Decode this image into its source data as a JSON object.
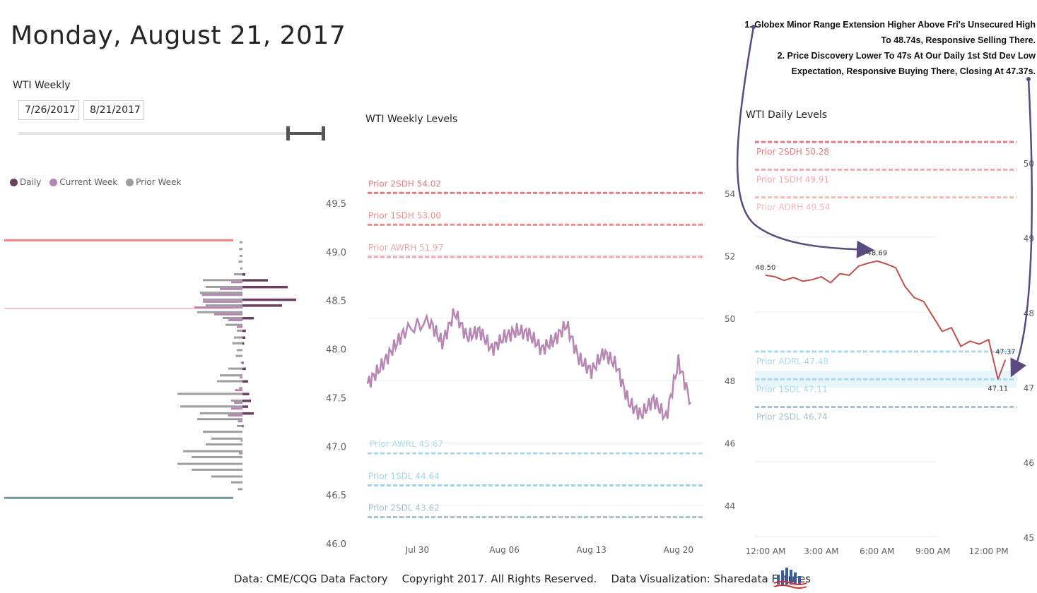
{
  "title": "Monday, August 21, 2017",
  "filter": {
    "label": "WTI Weekly",
    "start": "7/26/2017",
    "end": "8/21/2017"
  },
  "legend": [
    {
      "name": "Daily",
      "color": "#6b3f60"
    },
    {
      "name": "Current Week",
      "color": "#b886b4"
    },
    {
      "name": "Prior Week",
      "color": "#9e9e9e"
    }
  ],
  "annotation": [
    "1. Globex Minor Range Extension Higher Above Fri's Unsecured High",
    "To 48.74s, Responsive Selling There.",
    "2. Price Discovery Lower To 47s At Our Daily 1st Std Dev Low",
    "Expectation, Responsive Buying There, Closing At 47.37s."
  ],
  "footer": {
    "data": "Data: CME/CQG Data Factory",
    "copyright": "Copyright 2017. All Rights Reserved.",
    "viz": "Data Visualization: Sharedata Futures"
  },
  "chart_data": [
    {
      "type": "bar",
      "orientation": "horizontal",
      "title": "",
      "ylim": [
        46.0,
        49.5
      ],
      "y_ticks": [
        "49.5",
        "49.0",
        "48.5",
        "48.0",
        "47.5",
        "47.0",
        "46.5",
        "46.0"
      ],
      "price_levels": [
        49.1,
        49.03,
        48.96,
        48.9,
        48.83,
        48.77,
        48.71,
        48.64,
        48.58,
        48.51,
        48.45,
        48.38,
        48.32,
        48.25,
        48.19,
        48.12,
        48.06,
        47.99,
        47.93,
        47.86,
        47.8,
        47.73,
        47.67,
        47.6,
        47.54,
        47.47,
        47.41,
        47.34,
        47.28,
        47.21,
        47.15,
        47.08,
        47.02,
        46.95,
        46.89,
        46.82,
        46.76,
        46.69,
        46.63,
        46.56
      ],
      "series": [
        {
          "name": "Daily",
          "color": "#6b3f60",
          "values": [
            0,
            0,
            0,
            0,
            0,
            5,
            45,
            80,
            0,
            95,
            70,
            0,
            20,
            0,
            6,
            5,
            3,
            0,
            0,
            2,
            6,
            0,
            10,
            0,
            12,
            15,
            10,
            20,
            0,
            2,
            0,
            0,
            0,
            0,
            0,
            0,
            0,
            0,
            0,
            0
          ]
        },
        {
          "name": "Current Week",
          "color": "#b886b4",
          "values": [
            0,
            0,
            0,
            0,
            0,
            0,
            20,
            40,
            72,
            70,
            85,
            50,
            25,
            10,
            0,
            0,
            0,
            0,
            0,
            0,
            0,
            5,
            0,
            13,
            0,
            15,
            20,
            25,
            8,
            0,
            0,
            3,
            0,
            6,
            0,
            0,
            0,
            0,
            0,
            0
          ]
        },
        {
          "name": "Prior Week",
          "color": "#9e9e9e",
          "values": [
            5,
            6,
            5,
            7,
            4,
            15,
            70,
            65,
            75,
            70,
            65,
            80,
            35,
            30,
            10,
            15,
            18,
            10,
            12,
            3,
            25,
            40,
            45,
            6,
            115,
            20,
            110,
            75,
            80,
            10,
            70,
            55,
            65,
            105,
            90,
            115,
            90,
            55,
            20,
            8
          ]
        }
      ],
      "reference_lines": [
        {
          "value": 49.12,
          "color": "#f08080",
          "label": ""
        },
        {
          "value": 48.42,
          "color": "#f5b0b4",
          "label": ""
        },
        {
          "value": 46.47,
          "color": "#6a9a9e",
          "label": ""
        }
      ]
    },
    {
      "type": "line",
      "title": "WTI Weekly Levels",
      "x_ticks": [
        "Jul 30",
        "Aug 06",
        "Aug 13",
        "Aug 20"
      ],
      "xlim": [
        "2017-07-26",
        "2017-08-22"
      ],
      "ylim": [
        43.0,
        55.0
      ],
      "y_ticks": [
        "54",
        "52",
        "50",
        "48",
        "46",
        "44"
      ],
      "levels": [
        {
          "label": "Prior 2SDH 54.02",
          "value": 54.02,
          "color": "#e87b80"
        },
        {
          "label": "Prior 1SDH 53.00",
          "value": 53.0,
          "color": "#f08c8c"
        },
        {
          "label": "Prior AWRH 51.97",
          "value": 51.97,
          "color": "#f4a4a8"
        },
        {
          "label": "Prior AWRL 45.67",
          "value": 45.67,
          "color": "#a9dcea"
        },
        {
          "label": "Prior 1SDL 44.64",
          "value": 44.64,
          "color": "#9fd3e4"
        },
        {
          "label": "Prior 2SDL 43.62",
          "value": 43.62,
          "color": "#a4c3d0"
        }
      ],
      "series": [
        {
          "color": "#b886b4",
          "x": [
            "2017-07-26",
            "2017-07-27",
            "2017-07-28",
            "2017-07-29",
            "2017-07-31",
            "2017-08-01",
            "2017-08-02",
            "2017-08-03",
            "2017-08-04",
            "2017-08-05",
            "2017-08-06",
            "2017-08-07",
            "2017-08-08",
            "2017-08-09",
            "2017-08-10",
            "2017-08-11",
            "2017-08-12",
            "2017-08-13",
            "2017-08-14",
            "2017-08-15",
            "2017-08-16",
            "2017-08-17",
            "2017-08-18",
            "2017-08-19",
            "2017-08-20",
            "2017-08-21"
          ],
          "y": [
            47.9,
            48.4,
            49.0,
            49.6,
            49.9,
            49.2,
            50.2,
            49.4,
            49.6,
            49.0,
            49.4,
            49.6,
            49.5,
            49.0,
            49.3,
            49.8,
            48.7,
            48.3,
            48.9,
            48.5,
            47.3,
            46.9,
            47.4,
            46.8,
            48.6,
            47.3
          ]
        }
      ]
    },
    {
      "type": "line",
      "title": "WTI Daily Levels",
      "x_ticks": [
        "12:00 AM",
        "3:00 AM",
        "6:00 AM",
        "9:00 AM",
        "12:00 PM"
      ],
      "xlim": [
        "12:00 AM",
        "1:30 PM"
      ],
      "ylim": [
        45.0,
        50.3
      ],
      "y_ticks": [
        "50",
        "49",
        "48",
        "47",
        "46",
        "45"
      ],
      "levels": [
        {
          "label": "Prior 2SDH 50.28",
          "value": 50.28,
          "color": "#e87b80"
        },
        {
          "label": "Prior 1SDH 49.91",
          "value": 49.91,
          "color": "#f4a8ac"
        },
        {
          "label": "Prior ADRH 49.54",
          "value": 49.54,
          "color": "#f7b8bc"
        },
        {
          "label": "Prior ADRL 47.48",
          "value": 47.48,
          "color": "#a9dcea"
        },
        {
          "label": "Prior 1SDL 47.11",
          "value": 47.11,
          "color": "#a9dcea"
        },
        {
          "label": "Prior 2SDL 46.74",
          "value": 46.74,
          "color": "#a4c3d0"
        }
      ],
      "series": [
        {
          "color": "#c0504d",
          "x": [
            0,
            0.5,
            1,
            1.5,
            2,
            2.5,
            3,
            3.5,
            4,
            4.5,
            5,
            5.5,
            6,
            6.5,
            7,
            7.5,
            8,
            8.5,
            9,
            9.5,
            10,
            10.5,
            11,
            11.5,
            12,
            12.5
          ],
          "y": [
            48.5,
            48.48,
            48.43,
            48.47,
            48.42,
            48.44,
            48.48,
            48.4,
            48.52,
            48.5,
            48.62,
            48.66,
            48.69,
            48.65,
            48.6,
            48.35,
            48.2,
            48.15,
            47.95,
            47.75,
            47.8,
            47.55,
            47.62,
            47.58,
            47.64,
            47.11
          ]
        },
        {
          "color": "#c0504d",
          "x": [
            12.5,
            12.9
          ],
          "y": [
            47.11,
            47.37
          ]
        }
      ],
      "data_labels": [
        {
          "text": "48.50",
          "x": 0,
          "y": 48.5
        },
        {
          "text": "48.69",
          "x": 6,
          "y": 48.69
        },
        {
          "text": "47.37",
          "x": 12.9,
          "y": 47.37
        },
        {
          "text": "47.11",
          "x": 12.5,
          "y": 47.11
        }
      ]
    }
  ]
}
